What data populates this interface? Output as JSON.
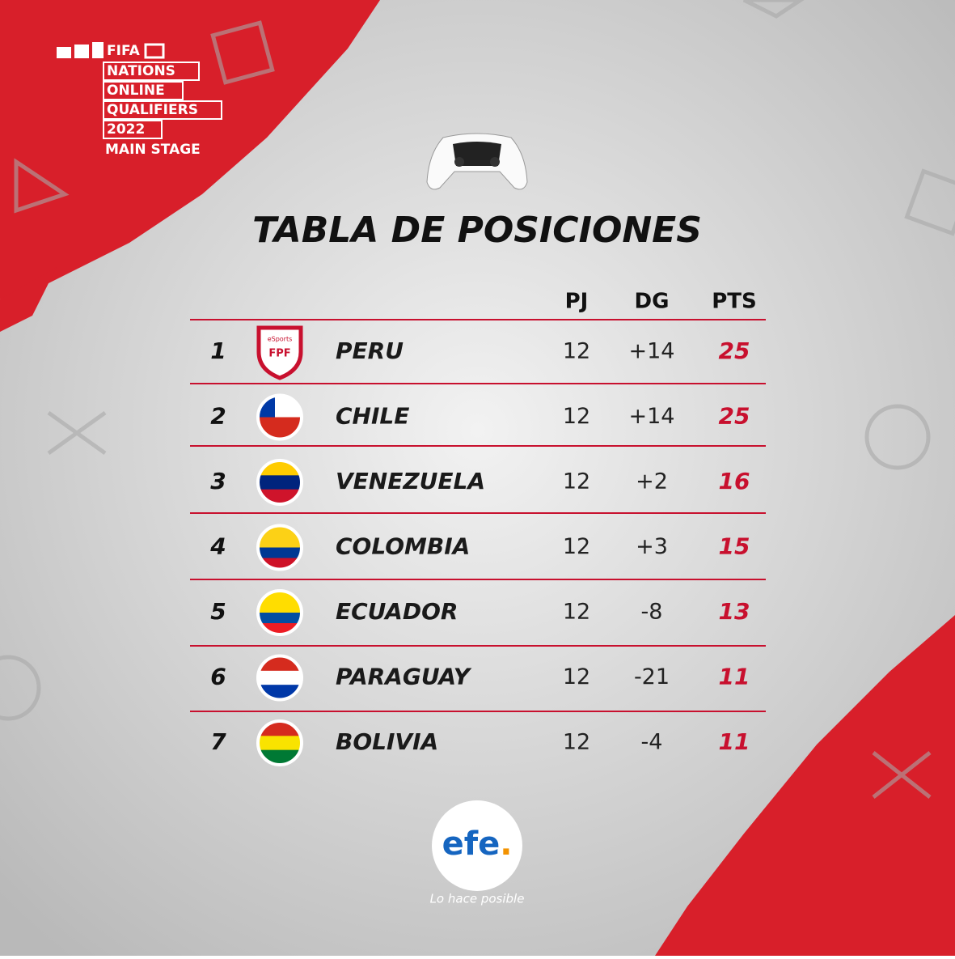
{
  "logo": {
    "brand": "FIFA",
    "lines": [
      "NATIONS",
      "ONLINE",
      "QUALIFIERS",
      "2022"
    ],
    "stage": "MAIN STAGE"
  },
  "title": "TABLA DE POSICIONES",
  "table": {
    "headers": [
      "PJ",
      "DG",
      "PTS"
    ],
    "rows": [
      {
        "rank": 1,
        "team": "PERU",
        "badge": [
          "eSports",
          "FPF"
        ],
        "pj": 12,
        "dg": "+14",
        "pts": 25
      },
      {
        "rank": 2,
        "team": "CHILE",
        "pj": 12,
        "dg": "+14",
        "pts": 25
      },
      {
        "rank": 3,
        "team": "VENEZUELA",
        "pj": 12,
        "dg": "+2",
        "pts": 16
      },
      {
        "rank": 4,
        "team": "COLOMBIA",
        "pj": 12,
        "dg": "+3",
        "pts": 15
      },
      {
        "rank": 5,
        "team": "ECUADOR",
        "pj": 12,
        "dg": "-8",
        "pts": 13
      },
      {
        "rank": 6,
        "team": "PARAGUAY",
        "pj": 12,
        "dg": "-21",
        "pts": 11
      },
      {
        "rank": 7,
        "team": "BOLIVIA",
        "pj": 12,
        "dg": "-4",
        "pts": 11
      }
    ]
  },
  "footer": {
    "brand": "efe",
    "dot": ".",
    "tagline": "Lo hace posible"
  }
}
